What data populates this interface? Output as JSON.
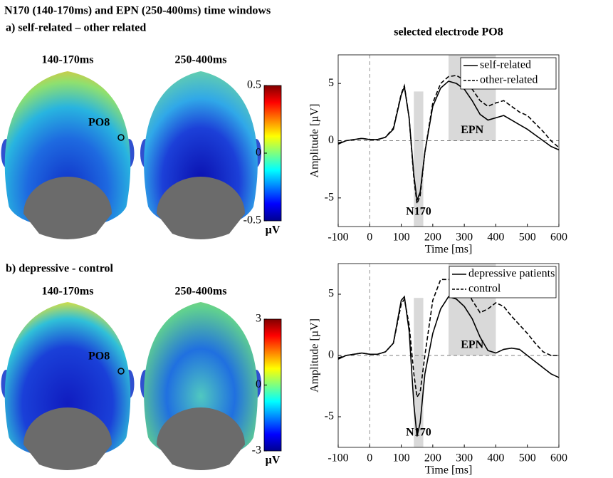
{
  "title": "N170 (140-170ms) and EPN (250-400ms) time windows",
  "panels": [
    {
      "label": "a) self-related – other related",
      "windows": [
        "140-170ms",
        "250-400ms"
      ],
      "electrode": "PO8",
      "colorbar": {
        "lim": [
          -0.5,
          0.5
        ],
        "ticks": [
          -0.5,
          0,
          0.5
        ],
        "unit": "µV"
      }
    },
    {
      "label": "b) depressive - control",
      "windows": [
        "140-170ms",
        "250-400ms"
      ],
      "electrode": "PO8",
      "colorbar": {
        "lim": [
          -3,
          3
        ],
        "ticks": [
          -3,
          0,
          3
        ],
        "unit": "µV"
      }
    }
  ],
  "chart_data": [
    {
      "type": "line",
      "title": "selected electrode PO8",
      "xlabel": "Time [ms]",
      "ylabel": "Amplitude [µV]",
      "xlim": [
        -100,
        600
      ],
      "ylim": [
        -7.5,
        7.5
      ],
      "xticks": [
        -100,
        0,
        100,
        200,
        300,
        400,
        500,
        600
      ],
      "yticks": [
        -5,
        0,
        5
      ],
      "legend": "upper right",
      "shaded": [
        {
          "label": "N170",
          "x": [
            140,
            170
          ],
          "y": [
            -7.5,
            4.3
          ]
        },
        {
          "label": "EPN",
          "x": [
            250,
            400
          ],
          "y": [
            0,
            7.5
          ]
        }
      ],
      "x": [
        -100,
        -75,
        -50,
        -25,
        0,
        25,
        50,
        75,
        100,
        110,
        125,
        140,
        150,
        160,
        175,
        200,
        225,
        250,
        275,
        300,
        325,
        350,
        375,
        400,
        425,
        450,
        475,
        500,
        525,
        550,
        575,
        600
      ],
      "series": [
        {
          "name": "self-related",
          "color": "#000000",
          "dash": "solid",
          "values": [
            -0.3,
            0,
            0.1,
            0.2,
            0.1,
            0.1,
            0.3,
            1.0,
            4.0,
            4.7,
            2.0,
            -3.0,
            -5.2,
            -4.5,
            -1.0,
            3.0,
            4.6,
            5.2,
            5.0,
            4.5,
            3.5,
            2.3,
            1.8,
            2.0,
            2.2,
            1.8,
            1.4,
            1.0,
            0.5,
            0,
            -0.5,
            -0.8
          ]
        },
        {
          "name": "other-related",
          "color": "#000000",
          "dash": "dashed",
          "values": [
            -0.2,
            0,
            0.1,
            0.2,
            0.1,
            0.1,
            0.3,
            1.1,
            4.1,
            4.8,
            2.0,
            -3.3,
            -5.5,
            -4.8,
            -1.0,
            3.3,
            5.0,
            5.6,
            5.7,
            5.3,
            4.5,
            3.5,
            3.0,
            3.3,
            3.5,
            3.0,
            2.5,
            2.2,
            1.5,
            0.8,
            0,
            -0.6
          ]
        }
      ]
    },
    {
      "type": "line",
      "xlabel": "Time [ms]",
      "ylabel": "Amplitude [µV]",
      "xlim": [
        -100,
        600
      ],
      "ylim": [
        -7.5,
        7.5
      ],
      "xticks": [
        -100,
        0,
        100,
        200,
        300,
        400,
        500,
        600
      ],
      "yticks": [
        -5,
        0,
        5
      ],
      "legend": "upper right",
      "shaded": [
        {
          "label": "N170",
          "x": [
            140,
            170
          ],
          "y": [
            -7.5,
            4.7
          ]
        },
        {
          "label": "EPN",
          "x": [
            250,
            400
          ],
          "y": [
            0,
            7.5
          ]
        }
      ],
      "x": [
        -100,
        -75,
        -50,
        -25,
        0,
        25,
        50,
        75,
        100,
        110,
        125,
        140,
        150,
        160,
        175,
        200,
        225,
        250,
        275,
        300,
        325,
        350,
        375,
        400,
        425,
        450,
        475,
        500,
        525,
        550,
        575,
        600
      ],
      "series": [
        {
          "name": "depressive patients",
          "color": "#000000",
          "dash": "solid",
          "values": [
            -0.3,
            0,
            0.1,
            0.2,
            0.1,
            0.1,
            0.3,
            1.0,
            4.5,
            4.8,
            2.0,
            -4.0,
            -6.6,
            -5.5,
            -1.5,
            1.8,
            3.8,
            4.8,
            4.6,
            4.0,
            3.0,
            1.5,
            0.4,
            0.2,
            0.5,
            0.6,
            0.5,
            0,
            -0.5,
            -1.0,
            -1.5,
            -1.8
          ]
        },
        {
          "name": "control",
          "color": "#000000",
          "dash": "dashed",
          "values": [
            -0.2,
            0,
            0.1,
            0.2,
            0.1,
            0.1,
            0.3,
            1.0,
            4.2,
            4.6,
            2.5,
            -1.5,
            -3.4,
            -3.0,
            0,
            4.5,
            6.2,
            6.2,
            6.1,
            5.8,
            4.5,
            3.5,
            3.8,
            4.3,
            4.0,
            3.2,
            2.5,
            1.8,
            1.0,
            0.3,
            0,
            0
          ]
        }
      ]
    }
  ]
}
